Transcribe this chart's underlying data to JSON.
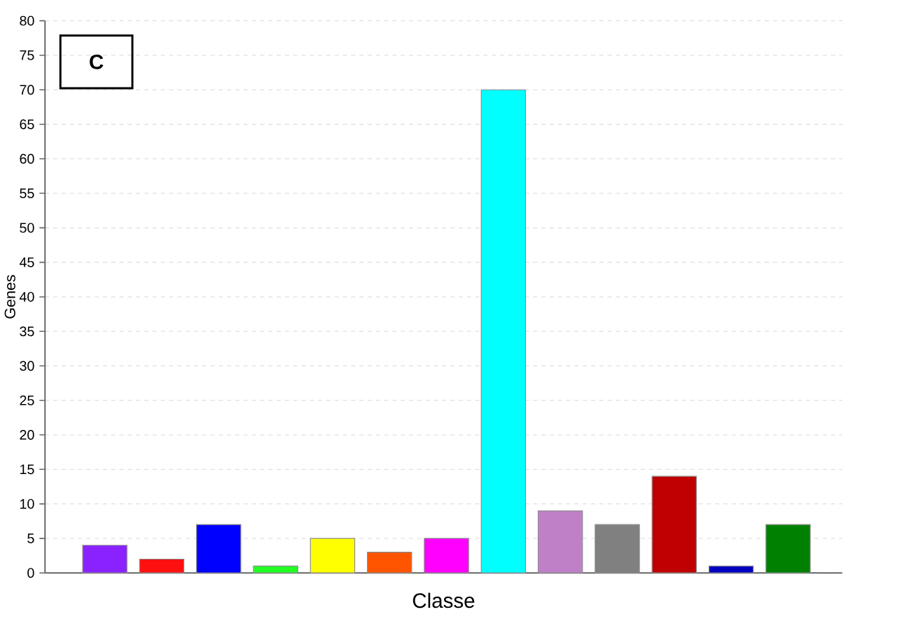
{
  "chart_data": {
    "type": "bar",
    "xlabel": "Classe",
    "ylabel": "Genes",
    "annotations": [
      "C"
    ],
    "categories": [
      null,
      null,
      null,
      null,
      null,
      null,
      null,
      null,
      null,
      null,
      null,
      null,
      null
    ],
    "values": [
      4,
      2,
      7,
      1,
      5,
      3,
      5,
      70,
      9,
      7,
      14,
      1,
      7
    ],
    "colors": [
      "#8a22ff",
      "#ff1010",
      "#0000ff",
      "#22ff22",
      "#ffff00",
      "#ff5500",
      "#ff00ff",
      "#00ffff",
      "#c080c8",
      "#808080",
      "#c00000",
      "#0000c0",
      "#008000"
    ],
    "ylim": [
      0,
      80
    ],
    "yticks": [
      0,
      5,
      10,
      15,
      20,
      25,
      30,
      35,
      40,
      45,
      50,
      55,
      60,
      65,
      70,
      75,
      80
    ],
    "grid": "y"
  }
}
